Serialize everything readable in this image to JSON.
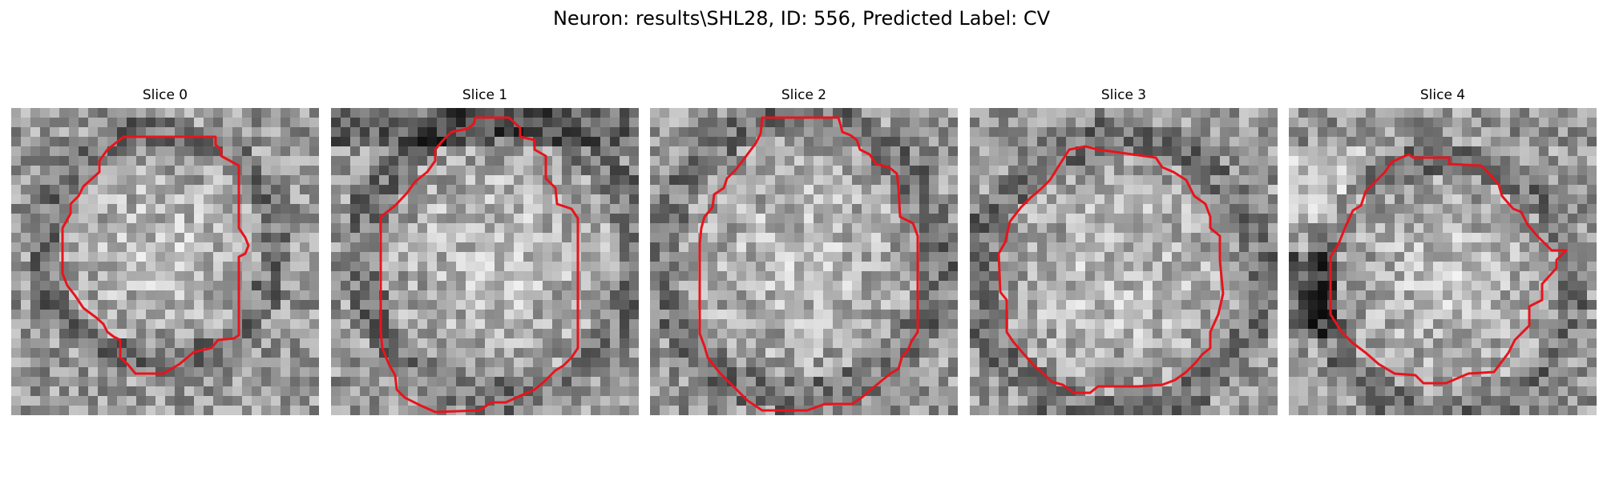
{
  "figure": {
    "title": "Neuron: results\\SHL28, ID: 556, Predicted Label: CV",
    "contour_color": "#e8141c",
    "colormap": "gray"
  },
  "panels": [
    {
      "title": "Slice 0"
    },
    {
      "title": "Slice 1"
    },
    {
      "title": "Slice 2"
    },
    {
      "title": "Slice 3"
    },
    {
      "title": "Slice 4"
    }
  ]
}
